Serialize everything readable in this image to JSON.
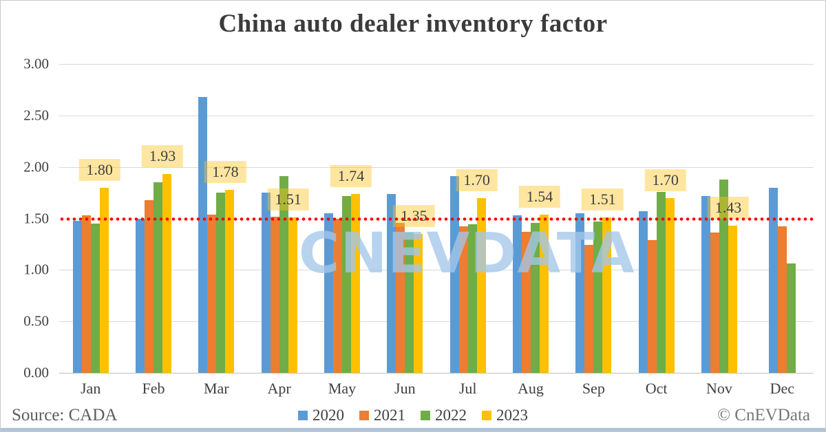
{
  "title": "China auto dealer inventory factor",
  "watermark": "CNEVDATA",
  "footer": {
    "source": "Source: CADA",
    "credit": "© CnEVData"
  },
  "colors": {
    "series_2020": "#5B9BD5",
    "series_2021": "#ED7D31",
    "series_2022": "#70AD47",
    "series_2023": "#FFC000",
    "reference_line": "#FF0000",
    "gridline": "#D9D9D9",
    "label_background": "#FFE49A",
    "watermark": "#A3C7E9"
  },
  "chart_data": {
    "type": "bar",
    "title": "China auto dealer inventory factor",
    "categories": [
      "Jan",
      "Feb",
      "Mar",
      "Apr",
      "May",
      "Jun",
      "Jul",
      "Aug",
      "Sep",
      "Oct",
      "Nov",
      "Dec"
    ],
    "series": [
      {
        "name": "2020",
        "color": "#5B9BD5",
        "values": [
          1.48,
          1.5,
          2.68,
          1.75,
          1.55,
          1.74,
          1.91,
          1.53,
          1.55,
          1.57,
          1.72,
          1.8
        ]
      },
      {
        "name": "2021",
        "color": "#ED7D31",
        "values": [
          1.53,
          1.68,
          1.54,
          1.52,
          1.5,
          1.46,
          1.42,
          1.37,
          1.24,
          1.29,
          1.36,
          1.42
        ]
      },
      {
        "name": "2022",
        "color": "#70AD47",
        "values": [
          1.45,
          1.85,
          1.75,
          1.91,
          1.72,
          1.36,
          1.44,
          1.46,
          1.47,
          1.76,
          1.88,
          1.06
        ]
      },
      {
        "name": "2023",
        "color": "#FFC000",
        "values": [
          1.8,
          1.93,
          1.78,
          1.51,
          1.74,
          1.35,
          1.7,
          1.54,
          1.51,
          1.7,
          1.43,
          null
        ],
        "labels": [
          "1.80",
          "1.93",
          "1.78",
          "1.51",
          "1.74",
          "1.35",
          "1.70",
          "1.54",
          "1.51",
          "1.70",
          "1.43",
          null
        ]
      }
    ],
    "ylim": [
      0,
      3
    ],
    "y_ticks": [
      "3.00",
      "2.50",
      "2.00",
      "1.50",
      "1.00",
      "0.50",
      "0.00"
    ],
    "grid": true,
    "legend_position": "bottom",
    "reference_line": {
      "value": 1.5,
      "style": "dotted",
      "color": "#FF0000"
    },
    "notes": "2023 values carry data labels; Dec 2023 has no bar. Unlabeled bar values estimated from gridlines."
  }
}
